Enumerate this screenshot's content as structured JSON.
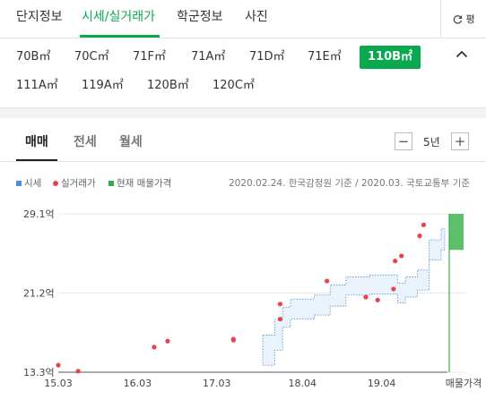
{
  "top_tabs": {
    "items": [
      {
        "label": "단지정보",
        "active": false
      },
      {
        "label": "시세/실거래가",
        "active": true
      },
      {
        "label": "학군정보",
        "active": false
      },
      {
        "label": "사진",
        "active": false
      }
    ],
    "refresh_icon": "refresh-icon",
    "refresh_label": "평"
  },
  "size_chips": [
    {
      "label": "70B㎡",
      "selected": false
    },
    {
      "label": "70C㎡",
      "selected": false
    },
    {
      "label": "71F㎡",
      "selected": false
    },
    {
      "label": "71A㎡",
      "selected": false
    },
    {
      "label": "71D㎡",
      "selected": false
    },
    {
      "label": "71E㎡",
      "selected": false
    },
    {
      "label": "110B㎡",
      "selected": true
    },
    {
      "label": "111A㎡",
      "selected": false
    },
    {
      "label": "119A㎡",
      "selected": false
    },
    {
      "label": "120B㎡",
      "selected": false
    },
    {
      "label": "120C㎡",
      "selected": false
    }
  ],
  "collapse_icon": "chevron-up-icon",
  "price_tabs": [
    {
      "label": "매매",
      "active": true
    },
    {
      "label": "전세",
      "active": false
    },
    {
      "label": "월세",
      "active": false
    }
  ],
  "period": {
    "value": "5년",
    "minus": "−",
    "plus": "+"
  },
  "legend": {
    "market": "시세",
    "actual": "실거래가",
    "listing": "현재 매물가격"
  },
  "source_note": "2020.02.24. 한국감정원 기준 / 2020.03. 국토교통부 기준",
  "colors": {
    "accent": "#0aa84f",
    "market": "#4a90d9",
    "actual": "#e8434c",
    "listing": "#3aab4a"
  },
  "chart_data": {
    "type": "scatter",
    "y_tick_labels": [
      "29.1억",
      "21.2억",
      "13.3억"
    ],
    "y_tick_values": [
      29.1,
      21.2,
      13.3
    ],
    "ylim": [
      13.3,
      29.1
    ],
    "x_tick_labels": [
      "15.03",
      "16.03",
      "17.03",
      "18.04",
      "19.04",
      "매물가격"
    ],
    "x_tick_positions": [
      2015.17,
      2016.17,
      2017.17,
      2018.25,
      2019.25
    ],
    "xlim": [
      2015.17,
      2020.08
    ],
    "actual_trades": [
      {
        "x": 2015.17,
        "y": 14.0
      },
      {
        "x": 2015.42,
        "y": 13.4
      },
      {
        "x": 2016.38,
        "y": 15.8
      },
      {
        "x": 2016.55,
        "y": 16.4
      },
      {
        "x": 2017.38,
        "y": 16.5
      },
      {
        "x": 2017.38,
        "y": 16.6
      },
      {
        "x": 2017.97,
        "y": 20.1
      },
      {
        "x": 2017.97,
        "y": 18.6
      },
      {
        "x": 2018.56,
        "y": 22.4
      },
      {
        "x": 2019.05,
        "y": 20.8
      },
      {
        "x": 2019.2,
        "y": 20.5
      },
      {
        "x": 2019.4,
        "y": 21.6
      },
      {
        "x": 2019.42,
        "y": 24.4
      },
      {
        "x": 2019.5,
        "y": 24.9
      },
      {
        "x": 2019.73,
        "y": 26.9
      },
      {
        "x": 2019.78,
        "y": 28.0
      }
    ],
    "market_band": [
      {
        "x": 2017.75,
        "lo": 14.0,
        "hi": 17.0
      },
      {
        "x": 2017.9,
        "lo": 15.5,
        "hi": 18.5
      },
      {
        "x": 2018.0,
        "lo": 17.8,
        "hi": 19.8
      },
      {
        "x": 2018.1,
        "lo": 18.6,
        "hi": 20.6
      },
      {
        "x": 2018.4,
        "lo": 19.0,
        "hi": 21.0
      },
      {
        "x": 2018.6,
        "lo": 19.9,
        "hi": 22.0
      },
      {
        "x": 2018.8,
        "lo": 21.0,
        "hi": 22.8
      },
      {
        "x": 2019.1,
        "lo": 21.1,
        "hi": 23.0
      },
      {
        "x": 2019.45,
        "lo": 20.2,
        "hi": 22.2
      },
      {
        "x": 2019.55,
        "lo": 20.8,
        "hi": 22.8
      },
      {
        "x": 2019.7,
        "lo": 21.5,
        "hi": 23.5
      },
      {
        "x": 2019.85,
        "lo": 24.5,
        "hi": 26.5
      },
      {
        "x": 2020.0,
        "lo": 25.5,
        "hi": 27.6
      }
    ],
    "listing_range": {
      "lo": 25.5,
      "hi": 29.1
    }
  }
}
